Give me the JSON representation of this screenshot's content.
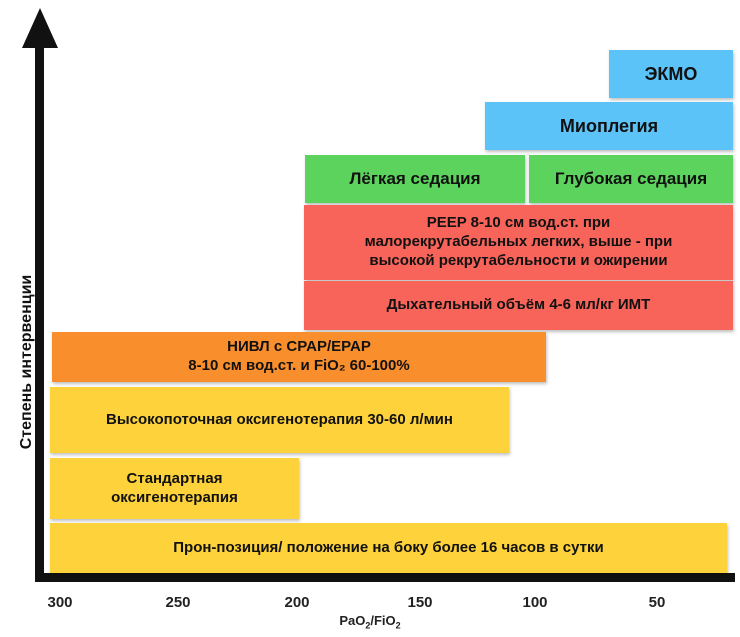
{
  "diagram": {
    "y_axis_label": "Степень интервенции",
    "x_axis_label_parts": [
      "PaO",
      "2",
      "/FiO",
      "2"
    ],
    "x_ticks": [
      "300",
      "250",
      "200",
      "150",
      "100",
      "50"
    ],
    "colors": {
      "yellow": "#FDD23A",
      "orange": "#F98E2C",
      "red": "#F8645A",
      "green": "#5CD35C",
      "blue": "#5BC3F8",
      "axis": "#111111"
    },
    "blocks": [
      {
        "id": "ekmo",
        "label": "ЭКМО",
        "color": "blue"
      },
      {
        "id": "mioplegia",
        "label": "Миоплегия",
        "color": "blue"
      },
      {
        "id": "light-sedation",
        "label": "Лёгкая седация",
        "color": "green"
      },
      {
        "id": "deep-sedation",
        "label": "Глубокая седация",
        "color": "green"
      },
      {
        "id": "peep",
        "label": "PEEP 8-10 см вод.ст. при\nмалорекрутабельных легких, выше - при\nвысокой рекрутабельности и ожирении",
        "color": "red"
      },
      {
        "id": "tidal-volume",
        "label": "Дыхательный объём 4-6 мл/кг ИМТ",
        "color": "red"
      },
      {
        "id": "nivl",
        "label": "НИВЛ с CPAP/EPAP\n8-10 см вод.ст. и FiO₂ 60-100%",
        "color": "orange"
      },
      {
        "id": "high-flow",
        "label": "Высокопоточная оксигенотерапия 30-60 л/мин",
        "color": "yellow"
      },
      {
        "id": "standard-oxygen",
        "label": "Стандартная\nоксигенотерапия",
        "color": "yellow"
      },
      {
        "id": "prone",
        "label": "Прон-позиция/ положение на боку более 16 часов в сутки",
        "color": "yellow"
      }
    ]
  }
}
